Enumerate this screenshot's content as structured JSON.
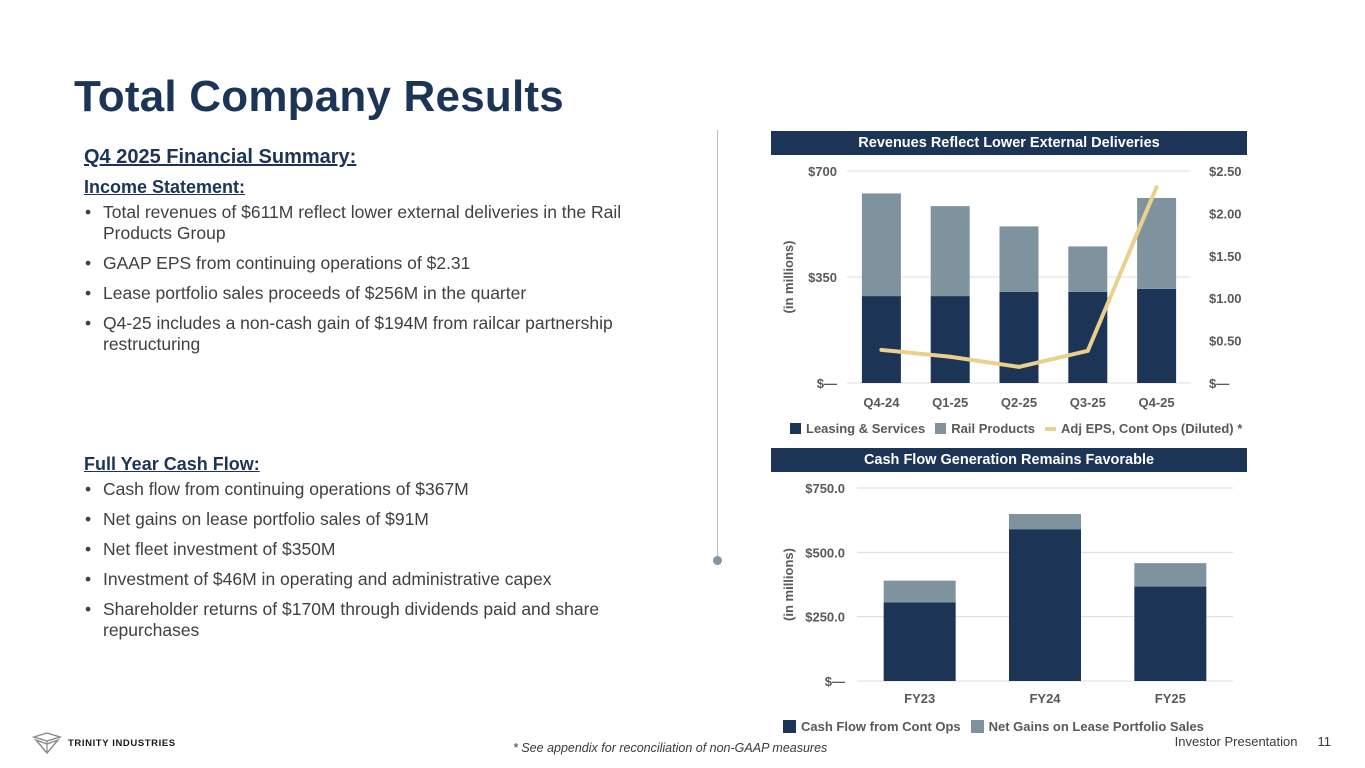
{
  "page": {
    "title": "Total Company Results",
    "footnote": "* See appendix for reconciliation of non-GAAP measures",
    "footer_label": "Investor Presentation",
    "page_number": "11",
    "logo_text": "TRINITY INDUSTRIES"
  },
  "summary": {
    "heading": "Q4 2025 Financial Summary:",
    "income": {
      "heading": "Income Statement:",
      "bullets": [
        "Total revenues of $611M reflect lower external deliveries in the Rail Products Group",
        "GAAP EPS from continuing operations of $2.31",
        "Lease portfolio sales proceeds of $256M in the quarter",
        "Q4-25 includes a non-cash gain of $194M from railcar partnership restructuring"
      ]
    },
    "cashflow": {
      "heading": "Full Year Cash Flow:",
      "bullets": [
        "Cash flow from continuing operations of $367M",
        "Net gains on lease portfolio sales of $91M",
        "Net fleet investment of $350M",
        "Investment of $46M in operating and administrative capex",
        "Shareholder returns of $170M through dividends paid and share repurchases"
      ]
    }
  },
  "colors": {
    "navy": "#1c3557",
    "gray": "#7f939f",
    "gold": "#e9d18d",
    "grid": "#dcdcdc"
  },
  "chart_data": [
    {
      "type": "bar",
      "stacked": true,
      "title": "Revenues Reflect Lower External Deliveries",
      "ylabel": "(in millions)",
      "categories": [
        "Q4-24",
        "Q1-25",
        "Q2-25",
        "Q3-25",
        "Q4-25"
      ],
      "ylim": [
        0,
        700
      ],
      "yticks": [
        0,
        350,
        700
      ],
      "ytick_labels": [
        "$—",
        "$350",
        "$700"
      ],
      "series": [
        {
          "name": "Leasing & Services",
          "values": [
            287,
            287,
            301,
            301,
            311
          ]
        },
        {
          "name": "Rail Products",
          "values": [
            339,
            297,
            216,
            150,
            300
          ]
        }
      ],
      "secondary": {
        "name": "Adj EPS, Cont Ops (Diluted) *",
        "type": "line",
        "values": [
          0.39,
          0.31,
          0.19,
          0.38,
          2.31
        ],
        "ylim": [
          0,
          2.5
        ],
        "yticks": [
          0,
          0.5,
          1.0,
          1.5,
          2.0,
          2.5
        ],
        "ytick_labels": [
          "$—",
          "$0.50",
          "$1.00",
          "$1.50",
          "$2.00",
          "$2.50"
        ]
      },
      "legend": "bottom"
    },
    {
      "type": "bar",
      "stacked": true,
      "title": "Cash Flow Generation Remains Favorable",
      "ylabel": "(in millions)",
      "categories": [
        "FY23",
        "FY24",
        "FY25"
      ],
      "ylim": [
        0,
        750
      ],
      "yticks": [
        0,
        250,
        500,
        750
      ],
      "ytick_labels": [
        "$—",
        "$250.0",
        "$500.0",
        "$750.0"
      ],
      "series": [
        {
          "name": "Cash Flow from Cont Ops",
          "values": [
            306,
            590,
            367
          ]
        },
        {
          "name": "Net Gains on Lease Portfolio Sales",
          "values": [
            84,
            59,
            91
          ]
        }
      ],
      "legend": "bottom"
    }
  ]
}
